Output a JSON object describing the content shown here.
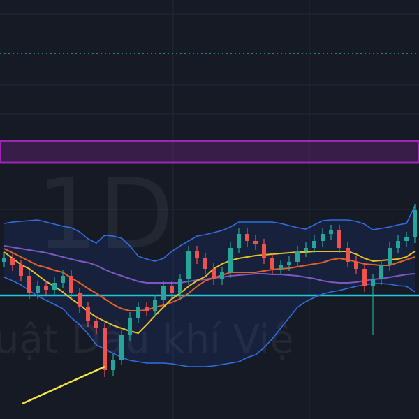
{
  "chart_data": {
    "type": "candlestick",
    "watermark": "1D",
    "watermark_text": "uật Dầu khí Việ",
    "categories": [
      null,
      null,
      null,
      null,
      null,
      null,
      null,
      null,
      null,
      null,
      null,
      null,
      null,
      null,
      null,
      null,
      null,
      null,
      null,
      null,
      null,
      null,
      null,
      null,
      null,
      null,
      null,
      null,
      null,
      null,
      null,
      null,
      null,
      null,
      null,
      null,
      null,
      null,
      null,
      null,
      null,
      null,
      null,
      null,
      null,
      null,
      null,
      null,
      null,
      null
    ],
    "open": [
      225,
      230,
      220,
      205,
      180,
      190,
      185,
      195,
      205,
      180,
      160,
      140,
      130,
      70,
      85,
      120,
      145,
      160,
      155,
      170,
      190,
      180,
      200,
      240,
      230,
      215,
      200,
      210,
      245,
      265,
      255,
      250,
      230,
      215,
      220,
      225,
      240,
      245,
      255,
      265,
      270,
      245,
      225,
      215,
      190,
      200,
      220,
      245,
      255,
      260
    ],
    "high": [
      238,
      238,
      228,
      213,
      198,
      198,
      203,
      213,
      213,
      188,
      168,
      148,
      138,
      93,
      128,
      153,
      168,
      168,
      178,
      198,
      198,
      208,
      248,
      248,
      238,
      223,
      218,
      253,
      273,
      273,
      263,
      258,
      238,
      228,
      233,
      248,
      253,
      263,
      273,
      278,
      278,
      253,
      233,
      223,
      208,
      228,
      253,
      263,
      268,
      308
    ],
    "low": [
      217,
      212,
      197,
      172,
      172,
      177,
      177,
      187,
      172,
      152,
      132,
      122,
      60,
      62,
      77,
      112,
      137,
      147,
      147,
      162,
      172,
      172,
      192,
      222,
      207,
      192,
      192,
      202,
      237,
      247,
      242,
      222,
      207,
      207,
      212,
      217,
      232,
      237,
      247,
      257,
      237,
      217,
      207,
      182,
      120,
      192,
      212,
      237,
      247,
      252
    ],
    "close": [
      230,
      220,
      205,
      180,
      190,
      185,
      195,
      205,
      180,
      160,
      140,
      130,
      70,
      85,
      120,
      145,
      160,
      155,
      170,
      190,
      180,
      200,
      240,
      230,
      215,
      200,
      210,
      245,
      265,
      255,
      250,
      230,
      215,
      220,
      225,
      240,
      245,
      255,
      265,
      270,
      245,
      225,
      215,
      190,
      200,
      220,
      245,
      255,
      260,
      300
    ],
    "up_color": "#26a69a",
    "down_color": "#ef5350",
    "ylim": [
      0,
      600
    ],
    "band_fill": "rgba(41,98,255,0.10)",
    "lines": [
      {
        "color": "#2f6fe0",
        "values": [
          280,
          282,
          283,
          284,
          285,
          282,
          279,
          276,
          274,
          268,
          258,
          252,
          263,
          262,
          259,
          248,
          233,
          229,
          226,
          230,
          240,
          248,
          255,
          262,
          264,
          267,
          270,
          275,
          282,
          282,
          282,
          282,
          282,
          280,
          277,
          274,
          272,
          278,
          284,
          285,
          285,
          285,
          283,
          279,
          271,
          273,
          275,
          278,
          280,
          305
        ]
      },
      {
        "color": "#2f6fe0",
        "values": [
          203,
          198,
          192,
          184,
          176,
          170,
          164,
          158,
          145,
          135,
          122,
          106,
          100,
          94,
          88,
          84,
          82,
          80,
          80,
          80,
          79,
          77,
          75,
          75,
          75,
          76,
          78,
          80,
          82,
          88,
          92,
          102,
          115,
          130,
          145,
          160,
          168,
          174,
          179,
          182,
          184,
          187,
          190,
          192,
          194,
          194,
          193,
          191,
          190,
          182
        ]
      },
      {
        "color": "#7e57c2",
        "values": [
          248,
          246,
          244,
          242,
          240,
          238,
          235,
          232,
          229,
          226,
          224,
          220,
          214,
          209,
          205,
          201,
          197,
          195,
          195,
          195,
          195,
          195,
          197,
          199,
          200,
          202,
          203,
          205,
          206,
          207,
          208,
          208,
          207,
          207,
          206,
          205,
          203,
          201,
          198,
          196,
          195,
          195,
          196,
          198,
          200,
          201,
          203,
          205,
          207,
          208
        ]
      },
      {
        "color": "#e0622b",
        "values": [
          244,
          238,
          232,
          226,
          220,
          217,
          213,
          210,
          202,
          195,
          187,
          180,
          172,
          164,
          158,
          155,
          155,
          156,
          160,
          163,
          167,
          172,
          180,
          190,
          198,
          202,
          206,
          210,
          210,
          210,
          210,
          212,
          214,
          215,
          216,
          218,
          220,
          222,
          224,
          228,
          230,
          228,
          225,
          222,
          221,
          220,
          220,
          224,
          228,
          232
        ]
      },
      {
        "color": "#e6c229",
        "values": [
          239,
          230,
          221,
          215,
          206,
          197,
          190,
          182,
          172,
          164,
          154,
          146,
          140,
          134,
          130,
          126,
          123,
          135,
          148,
          160,
          172,
          180,
          190,
          198,
          204,
          215,
          222,
          227,
          230,
          232,
          234,
          235,
          236,
          237,
          238,
          239,
          239,
          240,
          240,
          240,
          240,
          240,
          236,
          230,
          226,
          227,
          228,
          229,
          232,
          240
        ]
      }
    ],
    "levels": [
      {
        "value": 177,
        "color": "#26c6da",
        "style": "solid"
      },
      {
        "value": 523,
        "color": "#26a69a",
        "style": "dotted"
      }
    ],
    "zone": {
      "values": [
        367,
        398
      ],
      "color": "#9c27b0"
    }
  }
}
